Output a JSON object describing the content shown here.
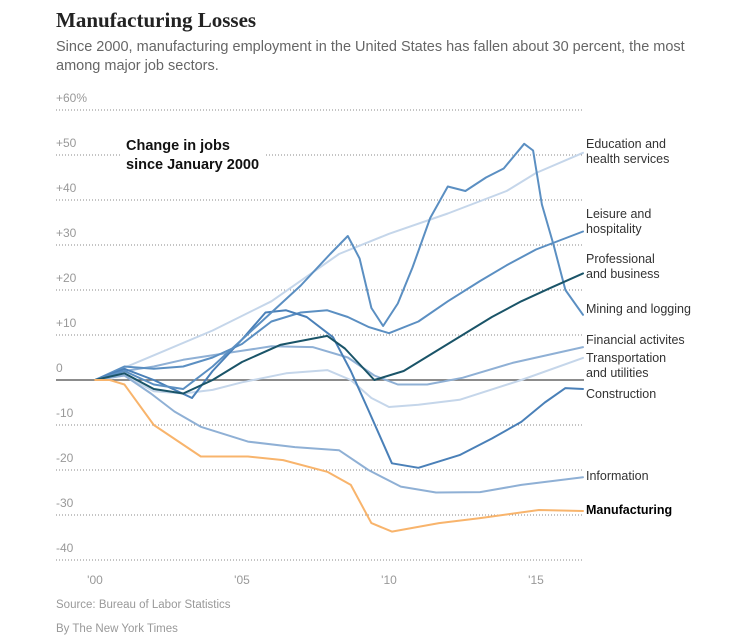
{
  "header": {
    "title": "Manufacturing Losses",
    "subtitle": "Since 2000, manufacturing employment in the United States has fallen about 30 percent, the most among major job sectors."
  },
  "footer": {
    "source": "Source: Bureau of Labor Statistics",
    "byline": "By The New York Times"
  },
  "chart_data": {
    "type": "line",
    "annotation": "Change in jobs since January 2000",
    "annotation_lines": [
      "Change in jobs",
      "since January 2000"
    ],
    "ylim": [
      -40,
      60
    ],
    "xlim": [
      2000,
      2016.6
    ],
    "y_ticks": [
      60,
      50,
      40,
      30,
      20,
      10,
      0,
      -10,
      -20,
      -30,
      -40
    ],
    "y_tick_labels": [
      "+60%",
      "+50",
      "+40",
      "+30",
      "+20",
      "+10",
      "0",
      "-10",
      "-20",
      "-30",
      "-40"
    ],
    "x_ticks": [
      2000,
      2005,
      2010,
      2015
    ],
    "x_tick_labels": [
      "'00",
      "'05",
      "'10",
      "'15"
    ],
    "grid": "dotted horizontal",
    "legend": "direct labels at right",
    "series": [
      {
        "name": "Education and health services",
        "label_lines": [
          "Education and",
          "health services"
        ],
        "color": "#c5d6ea",
        "points": [
          [
            2000,
            0
          ],
          [
            2002,
            5.5
          ],
          [
            2004,
            11
          ],
          [
            2006,
            17.5
          ],
          [
            2008.3,
            28
          ],
          [
            2010,
            32.5
          ],
          [
            2012,
            37
          ],
          [
            2014,
            42
          ],
          [
            2015,
            46
          ],
          [
            2016.6,
            50.5
          ]
        ]
      },
      {
        "name": "Transportation and utilities",
        "label_lines": [
          "Transportation",
          "and utilities"
        ],
        "color": "#c5d6ea",
        "points": [
          [
            2000,
            0
          ],
          [
            2001,
            1
          ],
          [
            2002,
            -2.5
          ],
          [
            2003,
            -3
          ],
          [
            2004,
            -2.2
          ],
          [
            2005,
            -0.5
          ],
          [
            2006.5,
            1.5
          ],
          [
            2007.9,
            2.2
          ],
          [
            2008.7,
            0
          ],
          [
            2009.4,
            -4
          ],
          [
            2010,
            -6
          ],
          [
            2011,
            -5.5
          ],
          [
            2012.4,
            -4.4
          ],
          [
            2014.5,
            0
          ],
          [
            2016.6,
            4.9
          ]
        ]
      },
      {
        "name": "Financial activites",
        "label_lines": [
          "Financial activites"
        ],
        "color": "#8fb0d5",
        "points": [
          [
            2000,
            0
          ],
          [
            2001,
            2
          ],
          [
            2002,
            3
          ],
          [
            2003,
            4.5
          ],
          [
            2004,
            5.5
          ],
          [
            2005,
            6.5
          ],
          [
            2006,
            7.5
          ],
          [
            2007.4,
            7.3
          ],
          [
            2008.6,
            5
          ],
          [
            2009.5,
            1
          ],
          [
            2010.3,
            -1
          ],
          [
            2011.3,
            -1
          ],
          [
            2012.5,
            0.5
          ],
          [
            2014.2,
            3.8
          ],
          [
            2016.6,
            7.3
          ]
        ]
      },
      {
        "name": "Information",
        "label_lines": [
          "Information"
        ],
        "color": "#8fb0d5",
        "points": [
          [
            2000,
            0
          ],
          [
            2001,
            1
          ],
          [
            2001.9,
            -3
          ],
          [
            2002.7,
            -7
          ],
          [
            2003.6,
            -10.4
          ],
          [
            2005.2,
            -13.7
          ],
          [
            2006.8,
            -14.9
          ],
          [
            2008.3,
            -15.6
          ],
          [
            2009.3,
            -20
          ],
          [
            2010.4,
            -23.7
          ],
          [
            2011.6,
            -25
          ],
          [
            2013.1,
            -24.9
          ],
          [
            2014.5,
            -23.3
          ],
          [
            2016.6,
            -21.6
          ]
        ]
      },
      {
        "name": "Leisure and hospitality",
        "label_lines": [
          "Leisure and",
          "hospitality"
        ],
        "color": "#5b8fc2",
        "points": [
          [
            2000,
            0
          ],
          [
            2001,
            3
          ],
          [
            2002,
            2.5
          ],
          [
            2003,
            3
          ],
          [
            2004,
            5
          ],
          [
            2005,
            8
          ],
          [
            2006,
            13
          ],
          [
            2007,
            15
          ],
          [
            2007.9,
            15.5
          ],
          [
            2008.6,
            14
          ],
          [
            2009.3,
            11.8
          ],
          [
            2010,
            10.4
          ],
          [
            2011,
            13
          ],
          [
            2012,
            17.5
          ],
          [
            2013.1,
            22
          ],
          [
            2014,
            25.5
          ],
          [
            2015,
            29
          ],
          [
            2016.6,
            33
          ]
        ]
      },
      {
        "name": "Construction",
        "label_lines": [
          "Construction"
        ],
        "color": "#4a80b8",
        "points": [
          [
            2000,
            0
          ],
          [
            2001,
            2.5
          ],
          [
            2002,
            0
          ],
          [
            2003.3,
            -4
          ],
          [
            2004,
            2
          ],
          [
            2005,
            9
          ],
          [
            2005.8,
            15
          ],
          [
            2006.5,
            15.5
          ],
          [
            2007.2,
            14
          ],
          [
            2008.1,
            9.5
          ],
          [
            2008.7,
            2
          ],
          [
            2009.3,
            -6.7
          ],
          [
            2010.1,
            -18.5
          ],
          [
            2011,
            -19.5
          ],
          [
            2012.4,
            -16.7
          ],
          [
            2013.5,
            -13
          ],
          [
            2014.5,
            -9.3
          ],
          [
            2015.3,
            -5
          ],
          [
            2016,
            -1.8
          ],
          [
            2016.6,
            -2
          ]
        ]
      },
      {
        "name": "Mining and logging",
        "label_lines": [
          "Mining and logging"
        ],
        "color": "#5b8fc2",
        "points": [
          [
            2000,
            0
          ],
          [
            2001,
            2
          ],
          [
            2002,
            -1
          ],
          [
            2003,
            -2
          ],
          [
            2004,
            3
          ],
          [
            2005,
            9
          ],
          [
            2006,
            15
          ],
          [
            2007,
            21
          ],
          [
            2008,
            28
          ],
          [
            2008.6,
            32
          ],
          [
            2009,
            27
          ],
          [
            2009.4,
            16
          ],
          [
            2009.8,
            12
          ],
          [
            2010.3,
            17
          ],
          [
            2010.8,
            25
          ],
          [
            2011.4,
            36
          ],
          [
            2012,
            43
          ],
          [
            2012.6,
            42
          ],
          [
            2013.3,
            45
          ],
          [
            2013.9,
            47
          ],
          [
            2014.6,
            52.5
          ],
          [
            2014.9,
            51
          ],
          [
            2015.2,
            39
          ],
          [
            2015.6,
            30
          ],
          [
            2016,
            20
          ],
          [
            2016.6,
            14.5
          ]
        ]
      },
      {
        "name": "Professional and business",
        "label_lines": [
          "Professional",
          "and business"
        ],
        "color": "#1a5468",
        "points": [
          [
            2000,
            0
          ],
          [
            2001,
            1.5
          ],
          [
            2002,
            -2
          ],
          [
            2003,
            -3
          ],
          [
            2004,
            0
          ],
          [
            2005,
            4
          ],
          [
            2006.3,
            7.8
          ],
          [
            2007.9,
            9.8
          ],
          [
            2008.5,
            7
          ],
          [
            2009.5,
            0
          ],
          [
            2010.5,
            2
          ],
          [
            2011.5,
            6
          ],
          [
            2012.5,
            10
          ],
          [
            2013.5,
            14
          ],
          [
            2014.5,
            17.5
          ],
          [
            2015.5,
            20.5
          ],
          [
            2016.6,
            23.7
          ]
        ]
      },
      {
        "name": "Manufacturing",
        "label_lines": [
          "Manufacturing"
        ],
        "color": "#f8b46c",
        "points": [
          [
            2000,
            0
          ],
          [
            2000.5,
            0
          ],
          [
            2001,
            -1
          ],
          [
            2002,
            -10
          ],
          [
            2003.6,
            -17
          ],
          [
            2005.2,
            -17
          ],
          [
            2006.4,
            -17.8
          ],
          [
            2007.9,
            -20.4
          ],
          [
            2008.7,
            -23.3
          ],
          [
            2009.4,
            -31.8
          ],
          [
            2010.1,
            -33.7
          ],
          [
            2011.7,
            -31.8
          ],
          [
            2013.1,
            -30.7
          ],
          [
            2015.1,
            -28.9
          ],
          [
            2016.6,
            -29.1
          ]
        ]
      }
    ]
  }
}
